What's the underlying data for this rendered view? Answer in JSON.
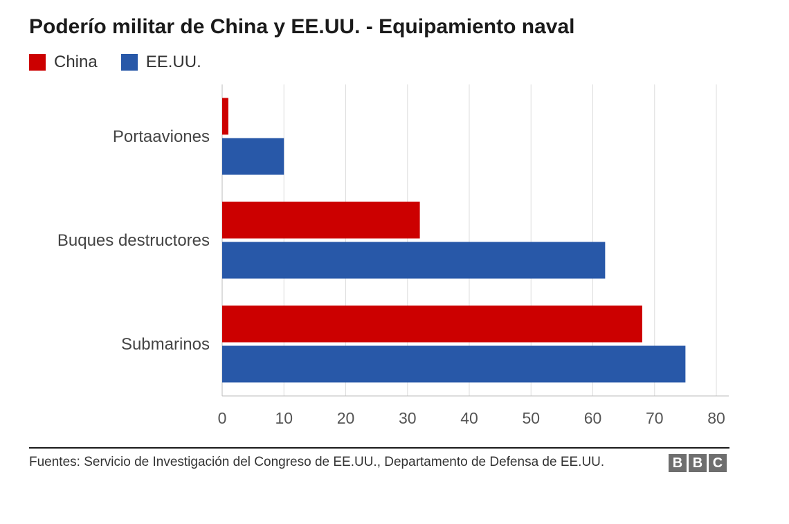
{
  "title": "Poderío militar de China y EE.UU. - Equipamiento naval",
  "legend": [
    {
      "label": "China",
      "color": "#cc0000"
    },
    {
      "label": "EE.UU.",
      "color": "#2858a8"
    }
  ],
  "chart_data": {
    "type": "bar",
    "orientation": "horizontal",
    "title": "Poderío militar de China y EE.UU. - Equipamiento naval",
    "categories": [
      "Portaaviones",
      "Buques destructores",
      "Submarinos"
    ],
    "series": [
      {
        "name": "China",
        "color": "#cc0000",
        "values": [
          1,
          32,
          68
        ]
      },
      {
        "name": "EE.UU.",
        "color": "#2858a8",
        "values": [
          10,
          62,
          75
        ]
      }
    ],
    "xlim": [
      0,
      80
    ],
    "xticks": [
      0,
      10,
      20,
      30,
      40,
      50,
      60,
      70,
      80
    ],
    "grid": true,
    "legend_position": "top-left"
  },
  "footer": {
    "source": "Fuentes: Servicio de Investigación del Congreso de EE.UU., Departamento de Defensa de EE.UU.",
    "logo_letters": [
      "B",
      "B",
      "C"
    ]
  }
}
